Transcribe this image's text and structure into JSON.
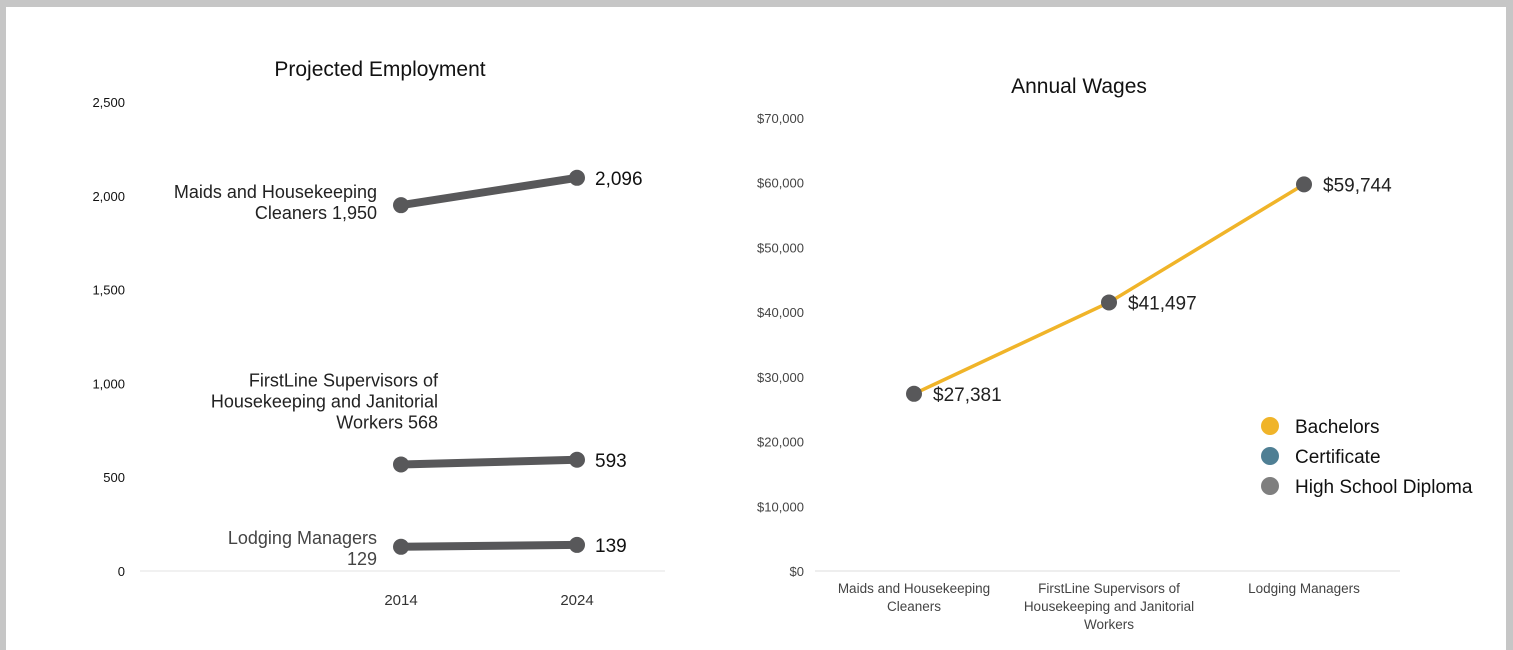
{
  "charts": [
    {
      "type": "line",
      "title": "Projected Employment",
      "xlabel": "",
      "ylabel": "",
      "ylim": [
        0,
        2500
      ],
      "yticks": [
        "2,500",
        "2,000",
        "1,500",
        "1,000",
        "500",
        "0"
      ],
      "ytick_values": [
        2500,
        2000,
        1500,
        1000,
        500,
        0
      ],
      "categories": [
        "2014",
        "2024"
      ],
      "series": [
        {
          "name": "Maids and Housekeeping Cleaners",
          "values": [
            1950,
            2096
          ],
          "label_lines": [
            "Maids and Housekeeping",
            "Cleaners 1,950"
          ],
          "end_label": "2,096"
        },
        {
          "name": "FirstLine Supervisors of Housekeeping and Janitorial Workers",
          "values": [
            568,
            593
          ],
          "label_lines": [
            "FirstLine Supervisors of",
            "Housekeeping and Janitorial",
            "Workers 568"
          ],
          "end_label": "593"
        },
        {
          "name": "Lodging Managers",
          "values": [
            129,
            139
          ],
          "label_lines": [
            "Lodging Managers",
            "129"
          ],
          "end_label": "139"
        }
      ],
      "colors": {
        "line": "#58585a",
        "label": "#222222",
        "label_light": "#444444"
      },
      "grid": false
    },
    {
      "type": "line",
      "title": "Annual Wages",
      "xlabel": "",
      "ylabel": "",
      "ylim": [
        0,
        70000
      ],
      "yticks": [
        "$70,000",
        "$60,000",
        "$50,000",
        "$40,000",
        "$30,000",
        "$20,000",
        "$10,000",
        "$0"
      ],
      "ytick_values": [
        70000,
        60000,
        50000,
        40000,
        30000,
        20000,
        10000,
        0
      ],
      "categories": [
        [
          "Maids and Housekeeping",
          "Cleaners"
        ],
        [
          "FirstLine Supervisors of",
          "Housekeeping and Janitorial",
          "Workers"
        ],
        [
          "Lodging Managers"
        ]
      ],
      "series": [
        {
          "name": "Bachelors",
          "values": [
            27381,
            41497,
            59744
          ],
          "point_labels": [
            "$27,381",
            "$41,497",
            "$59,744"
          ]
        }
      ],
      "legend": {
        "placement": "right",
        "items": [
          {
            "label": "Bachelors",
            "color": "#f0b429"
          },
          {
            "label": "Certificate",
            "color": "#4f7f94"
          },
          {
            "label": "High School Diploma",
            "color": "#7f7f7f"
          }
        ]
      },
      "colors": {
        "line": "#f0b429",
        "marker": "#58585a"
      },
      "grid": false
    }
  ]
}
